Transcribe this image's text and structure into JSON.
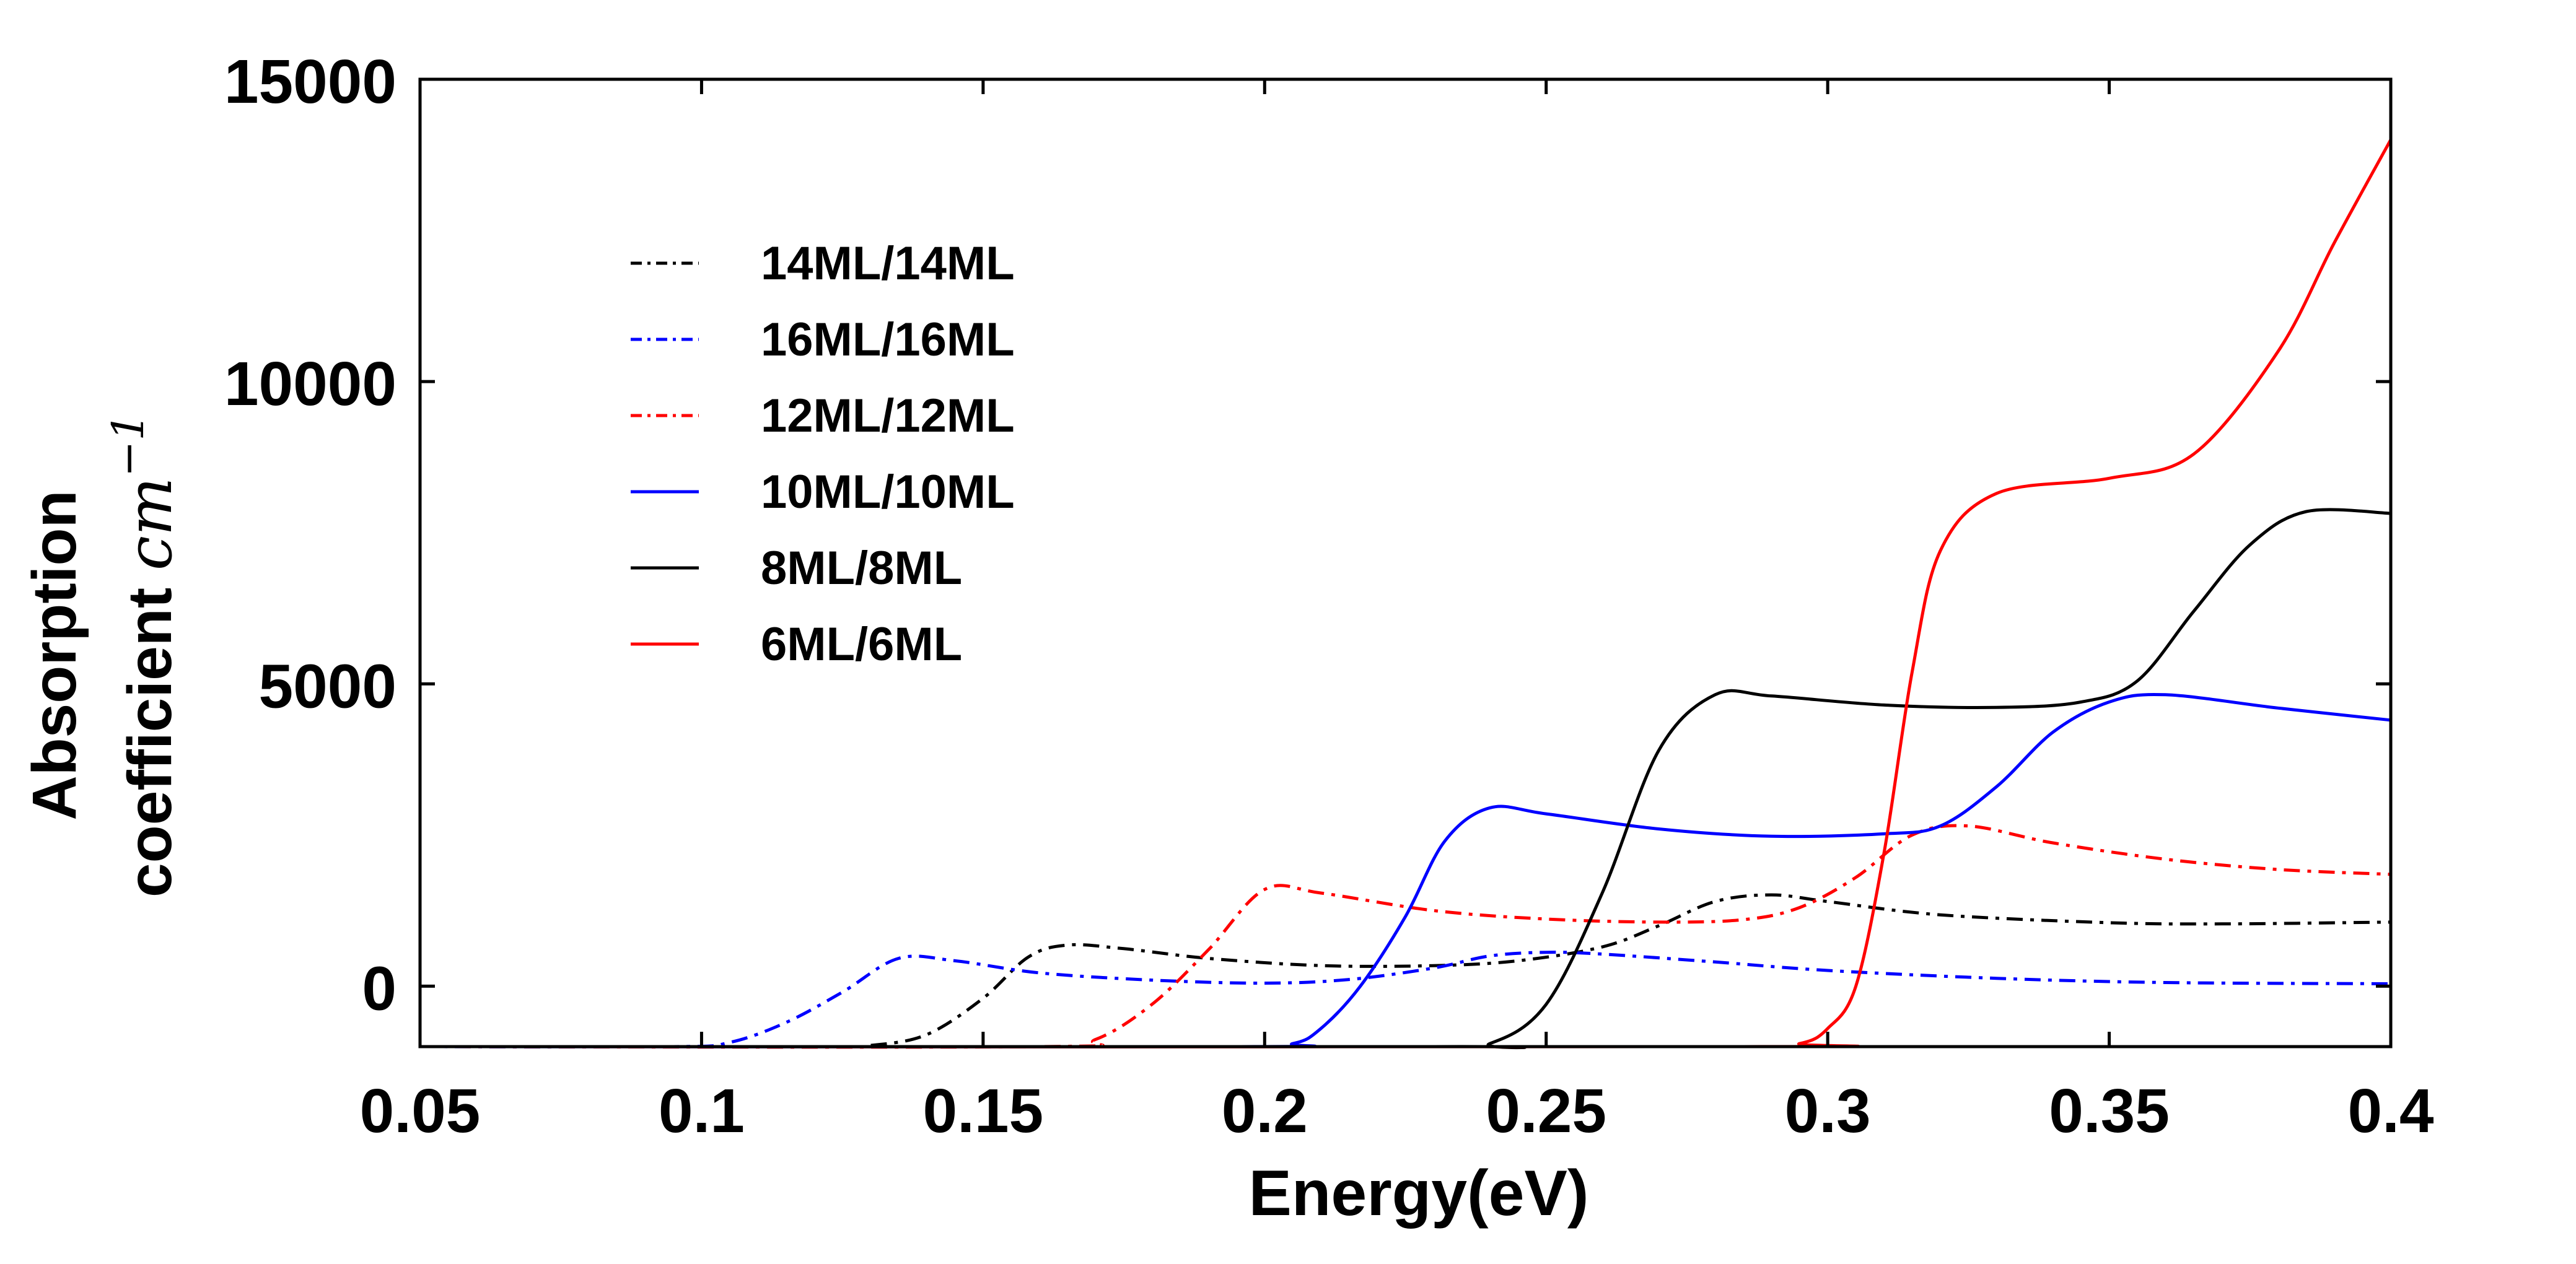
{
  "chart_data": {
    "type": "line",
    "title": "",
    "xlabel": "Energy(eV)",
    "ylabel_line1": "Absorption",
    "ylabel_line2_text": "coefficient ",
    "ylabel_line2_unit": "cm",
    "ylabel_line2_exp": "−1",
    "xlim": [
      0.05,
      0.4
    ],
    "ylim": [
      -1000,
      15000
    ],
    "x_ticks": [
      0.05,
      0.1,
      0.15,
      0.2,
      0.25,
      0.3,
      0.35,
      0.4
    ],
    "x_tick_labels": [
      "0.05",
      "0.1",
      "0.15",
      "0.2",
      "0.25",
      "0.3",
      "0.35",
      "0.4"
    ],
    "y_ticks": [
      0,
      5000,
      10000,
      15000
    ],
    "y_tick_labels": [
      "0",
      "5000",
      "10000",
      "15000"
    ],
    "y_label_values": [
      0,
      5000,
      10000,
      15000
    ],
    "y_tick_marks": [
      0,
      5000,
      10000,
      15000
    ],
    "grid": false,
    "legend_position": "upper-left",
    "series": [
      {
        "name": "14ML/14ML",
        "color": "#000000",
        "style": "dashdot",
        "points": [
          [
            0.05,
            -1000
          ],
          [
            0.12,
            -1000
          ],
          [
            0.13,
            -980
          ],
          [
            0.14,
            -800
          ],
          [
            0.15,
            -200
          ],
          [
            0.158,
            480
          ],
          [
            0.165,
            680
          ],
          [
            0.175,
            620
          ],
          [
            0.19,
            460
          ],
          [
            0.21,
            340
          ],
          [
            0.23,
            340
          ],
          [
            0.245,
            420
          ],
          [
            0.26,
            650
          ],
          [
            0.27,
            1000
          ],
          [
            0.28,
            1400
          ],
          [
            0.29,
            1510
          ],
          [
            0.3,
            1400
          ],
          [
            0.32,
            1180
          ],
          [
            0.35,
            1050
          ],
          [
            0.37,
            1030
          ],
          [
            0.4,
            1060
          ]
        ]
      },
      {
        "name": "16ML/16ML",
        "color": "#0000ff",
        "style": "dashdot",
        "points": [
          [
            0.05,
            -1000
          ],
          [
            0.095,
            -1000
          ],
          [
            0.105,
            -930
          ],
          [
            0.115,
            -600
          ],
          [
            0.125,
            -100
          ],
          [
            0.135,
            460
          ],
          [
            0.145,
            420
          ],
          [
            0.16,
            220
          ],
          [
            0.18,
            100
          ],
          [
            0.2,
            50
          ],
          [
            0.215,
            110
          ],
          [
            0.23,
            300
          ],
          [
            0.24,
            500
          ],
          [
            0.25,
            560
          ],
          [
            0.26,
            530
          ],
          [
            0.28,
            400
          ],
          [
            0.3,
            260
          ],
          [
            0.33,
            130
          ],
          [
            0.36,
            60
          ],
          [
            0.4,
            40
          ]
        ]
      },
      {
        "name": "12ML/12ML",
        "color": "#ff0000",
        "style": "dashdot",
        "points": [
          [
            0.05,
            -1000
          ],
          [
            0.16,
            -1000
          ],
          [
            0.17,
            -880
          ],
          [
            0.18,
            -300
          ],
          [
            0.19,
            600
          ],
          [
            0.2,
            1600
          ],
          [
            0.21,
            1540
          ],
          [
            0.23,
            1250
          ],
          [
            0.25,
            1110
          ],
          [
            0.27,
            1060
          ],
          [
            0.285,
            1100
          ],
          [
            0.295,
            1300
          ],
          [
            0.305,
            1800
          ],
          [
            0.315,
            2500
          ],
          [
            0.325,
            2650
          ],
          [
            0.34,
            2370
          ],
          [
            0.36,
            2100
          ],
          [
            0.38,
            1930
          ],
          [
            0.4,
            1850
          ]
        ]
      },
      {
        "name": "10ML/10ML",
        "color": "#0000ff",
        "style": "solid",
        "points": [
          [
            0.05,
            -1000
          ],
          [
            0.195,
            -1000
          ],
          [
            0.205,
            -950
          ],
          [
            0.21,
            -700
          ],
          [
            0.217,
            0
          ],
          [
            0.225,
            1150
          ],
          [
            0.232,
            2400
          ],
          [
            0.24,
            2950
          ],
          [
            0.25,
            2850
          ],
          [
            0.27,
            2600
          ],
          [
            0.29,
            2480
          ],
          [
            0.31,
            2520
          ],
          [
            0.32,
            2650
          ],
          [
            0.33,
            3300
          ],
          [
            0.34,
            4200
          ],
          [
            0.35,
            4700
          ],
          [
            0.36,
            4820
          ],
          [
            0.38,
            4600
          ],
          [
            0.4,
            4400
          ]
        ]
      },
      {
        "name": "8ML/8ML",
        "color": "#000000",
        "style": "solid",
        "points": [
          [
            0.05,
            -1000
          ],
          [
            0.23,
            -1000
          ],
          [
            0.24,
            -950
          ],
          [
            0.25,
            -300
          ],
          [
            0.26,
            1550
          ],
          [
            0.27,
            3900
          ],
          [
            0.28,
            4820
          ],
          [
            0.29,
            4800
          ],
          [
            0.31,
            4650
          ],
          [
            0.33,
            4610
          ],
          [
            0.345,
            4700
          ],
          [
            0.355,
            5050
          ],
          [
            0.365,
            6200
          ],
          [
            0.375,
            7300
          ],
          [
            0.385,
            7850
          ],
          [
            0.4,
            7820
          ]
        ]
      },
      {
        "name": "6ML/6ML",
        "color": "#ff0000",
        "style": "solid",
        "points": [
          [
            0.05,
            -1000
          ],
          [
            0.285,
            -1000
          ],
          [
            0.295,
            -950
          ],
          [
            0.3,
            -700
          ],
          [
            0.305,
            0
          ],
          [
            0.31,
            2200
          ],
          [
            0.315,
            5200
          ],
          [
            0.32,
            7200
          ],
          [
            0.33,
            8150
          ],
          [
            0.35,
            8400
          ],
          [
            0.365,
            8800
          ],
          [
            0.38,
            10500
          ],
          [
            0.39,
            12300
          ],
          [
            0.4,
            14000
          ]
        ]
      }
    ]
  }
}
